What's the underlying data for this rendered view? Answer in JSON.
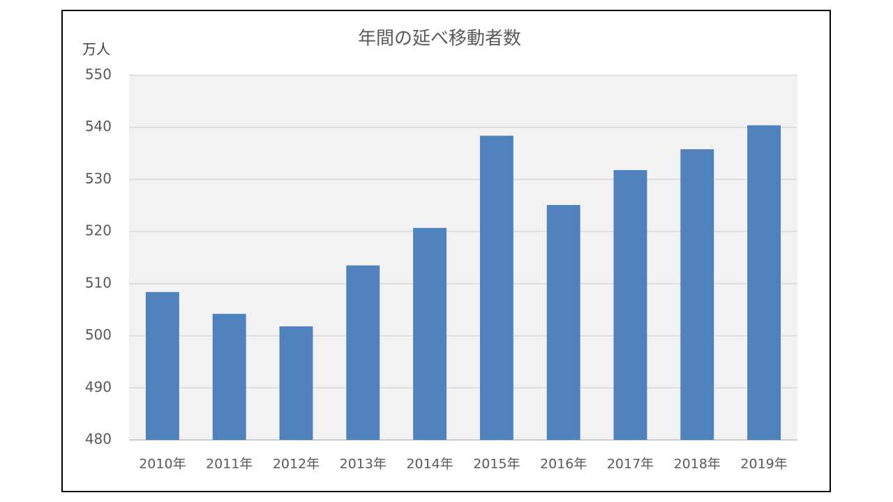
{
  "chart_data": {
    "type": "bar",
    "title": "年間の延べ移動者数",
    "y_axis_label": "万人",
    "categories": [
      "2010年",
      "2011年",
      "2012年",
      "2013年",
      "2014年",
      "2015年",
      "2016年",
      "2017年",
      "2018年",
      "2019年"
    ],
    "values": [
      508.4,
      504.2,
      501.8,
      513.5,
      520.7,
      538.4,
      525.1,
      531.8,
      535.8,
      540.4
    ],
    "color": "#4f81bd",
    "ylim": [
      480,
      550
    ],
    "yticks": [
      480,
      490,
      500,
      510,
      520,
      530,
      540,
      550
    ],
    "grid": true
  }
}
